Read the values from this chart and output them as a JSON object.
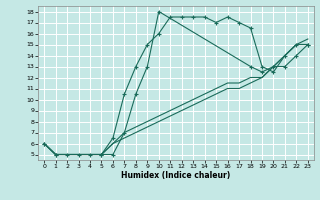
{
  "xlabel": "Humidex (Indice chaleur)",
  "ylabel": "",
  "bg_color": "#c5e8e5",
  "line_color": "#1a6b5a",
  "grid_color": "#b0d8d5",
  "xlim": [
    -0.5,
    23.5
  ],
  "ylim": [
    4.5,
    18.5
  ],
  "xticks": [
    0,
    1,
    2,
    3,
    4,
    5,
    6,
    7,
    8,
    9,
    10,
    11,
    12,
    13,
    14,
    15,
    16,
    17,
    18,
    19,
    20,
    21,
    22,
    23
  ],
  "yticks": [
    5,
    6,
    7,
    8,
    9,
    10,
    11,
    12,
    13,
    14,
    15,
    16,
    17,
    18
  ],
  "series": [
    {
      "x": [
        0,
        1,
        2,
        3,
        4,
        5,
        6,
        7,
        8,
        9,
        10,
        11,
        12,
        13,
        14,
        15,
        16,
        17,
        18,
        19,
        20,
        21,
        22,
        23
      ],
      "y": [
        6,
        5,
        5,
        5,
        5,
        5,
        6.5,
        10.5,
        13,
        15,
        16,
        17.5,
        17.5,
        17.5,
        17.5,
        17,
        17.5,
        17,
        16.5,
        13,
        12.5,
        14,
        15,
        15
      ],
      "marker": "+"
    },
    {
      "x": [
        0,
        1,
        5,
        6,
        7,
        8,
        9,
        10,
        18,
        19,
        20,
        21,
        22,
        23
      ],
      "y": [
        6,
        5,
        5,
        5,
        7,
        10.5,
        13,
        18,
        13,
        12.5,
        13,
        13,
        14,
        15
      ],
      "marker": "+"
    },
    {
      "x": [
        0,
        1,
        2,
        3,
        4,
        5,
        6,
        7,
        8,
        9,
        10,
        11,
        12,
        13,
        14,
        15,
        16,
        17,
        18,
        19,
        20,
        21,
        22,
        23
      ],
      "y": [
        6,
        5,
        5,
        5,
        5,
        5,
        6,
        7,
        7.5,
        8,
        8.5,
        9,
        9.5,
        10,
        10.5,
        11,
        11.5,
        11.5,
        12,
        12,
        13,
        14,
        15,
        15
      ],
      "marker": null
    },
    {
      "x": [
        0,
        1,
        2,
        3,
        4,
        5,
        6,
        7,
        8,
        9,
        10,
        11,
        12,
        13,
        14,
        15,
        16,
        17,
        18,
        19,
        20,
        21,
        22,
        23
      ],
      "y": [
        6,
        5,
        5,
        5,
        5,
        5,
        6,
        6.5,
        7,
        7.5,
        8,
        8.5,
        9,
        9.5,
        10,
        10.5,
        11,
        11,
        11.5,
        12,
        13,
        14,
        15,
        15.5
      ],
      "marker": null
    }
  ]
}
